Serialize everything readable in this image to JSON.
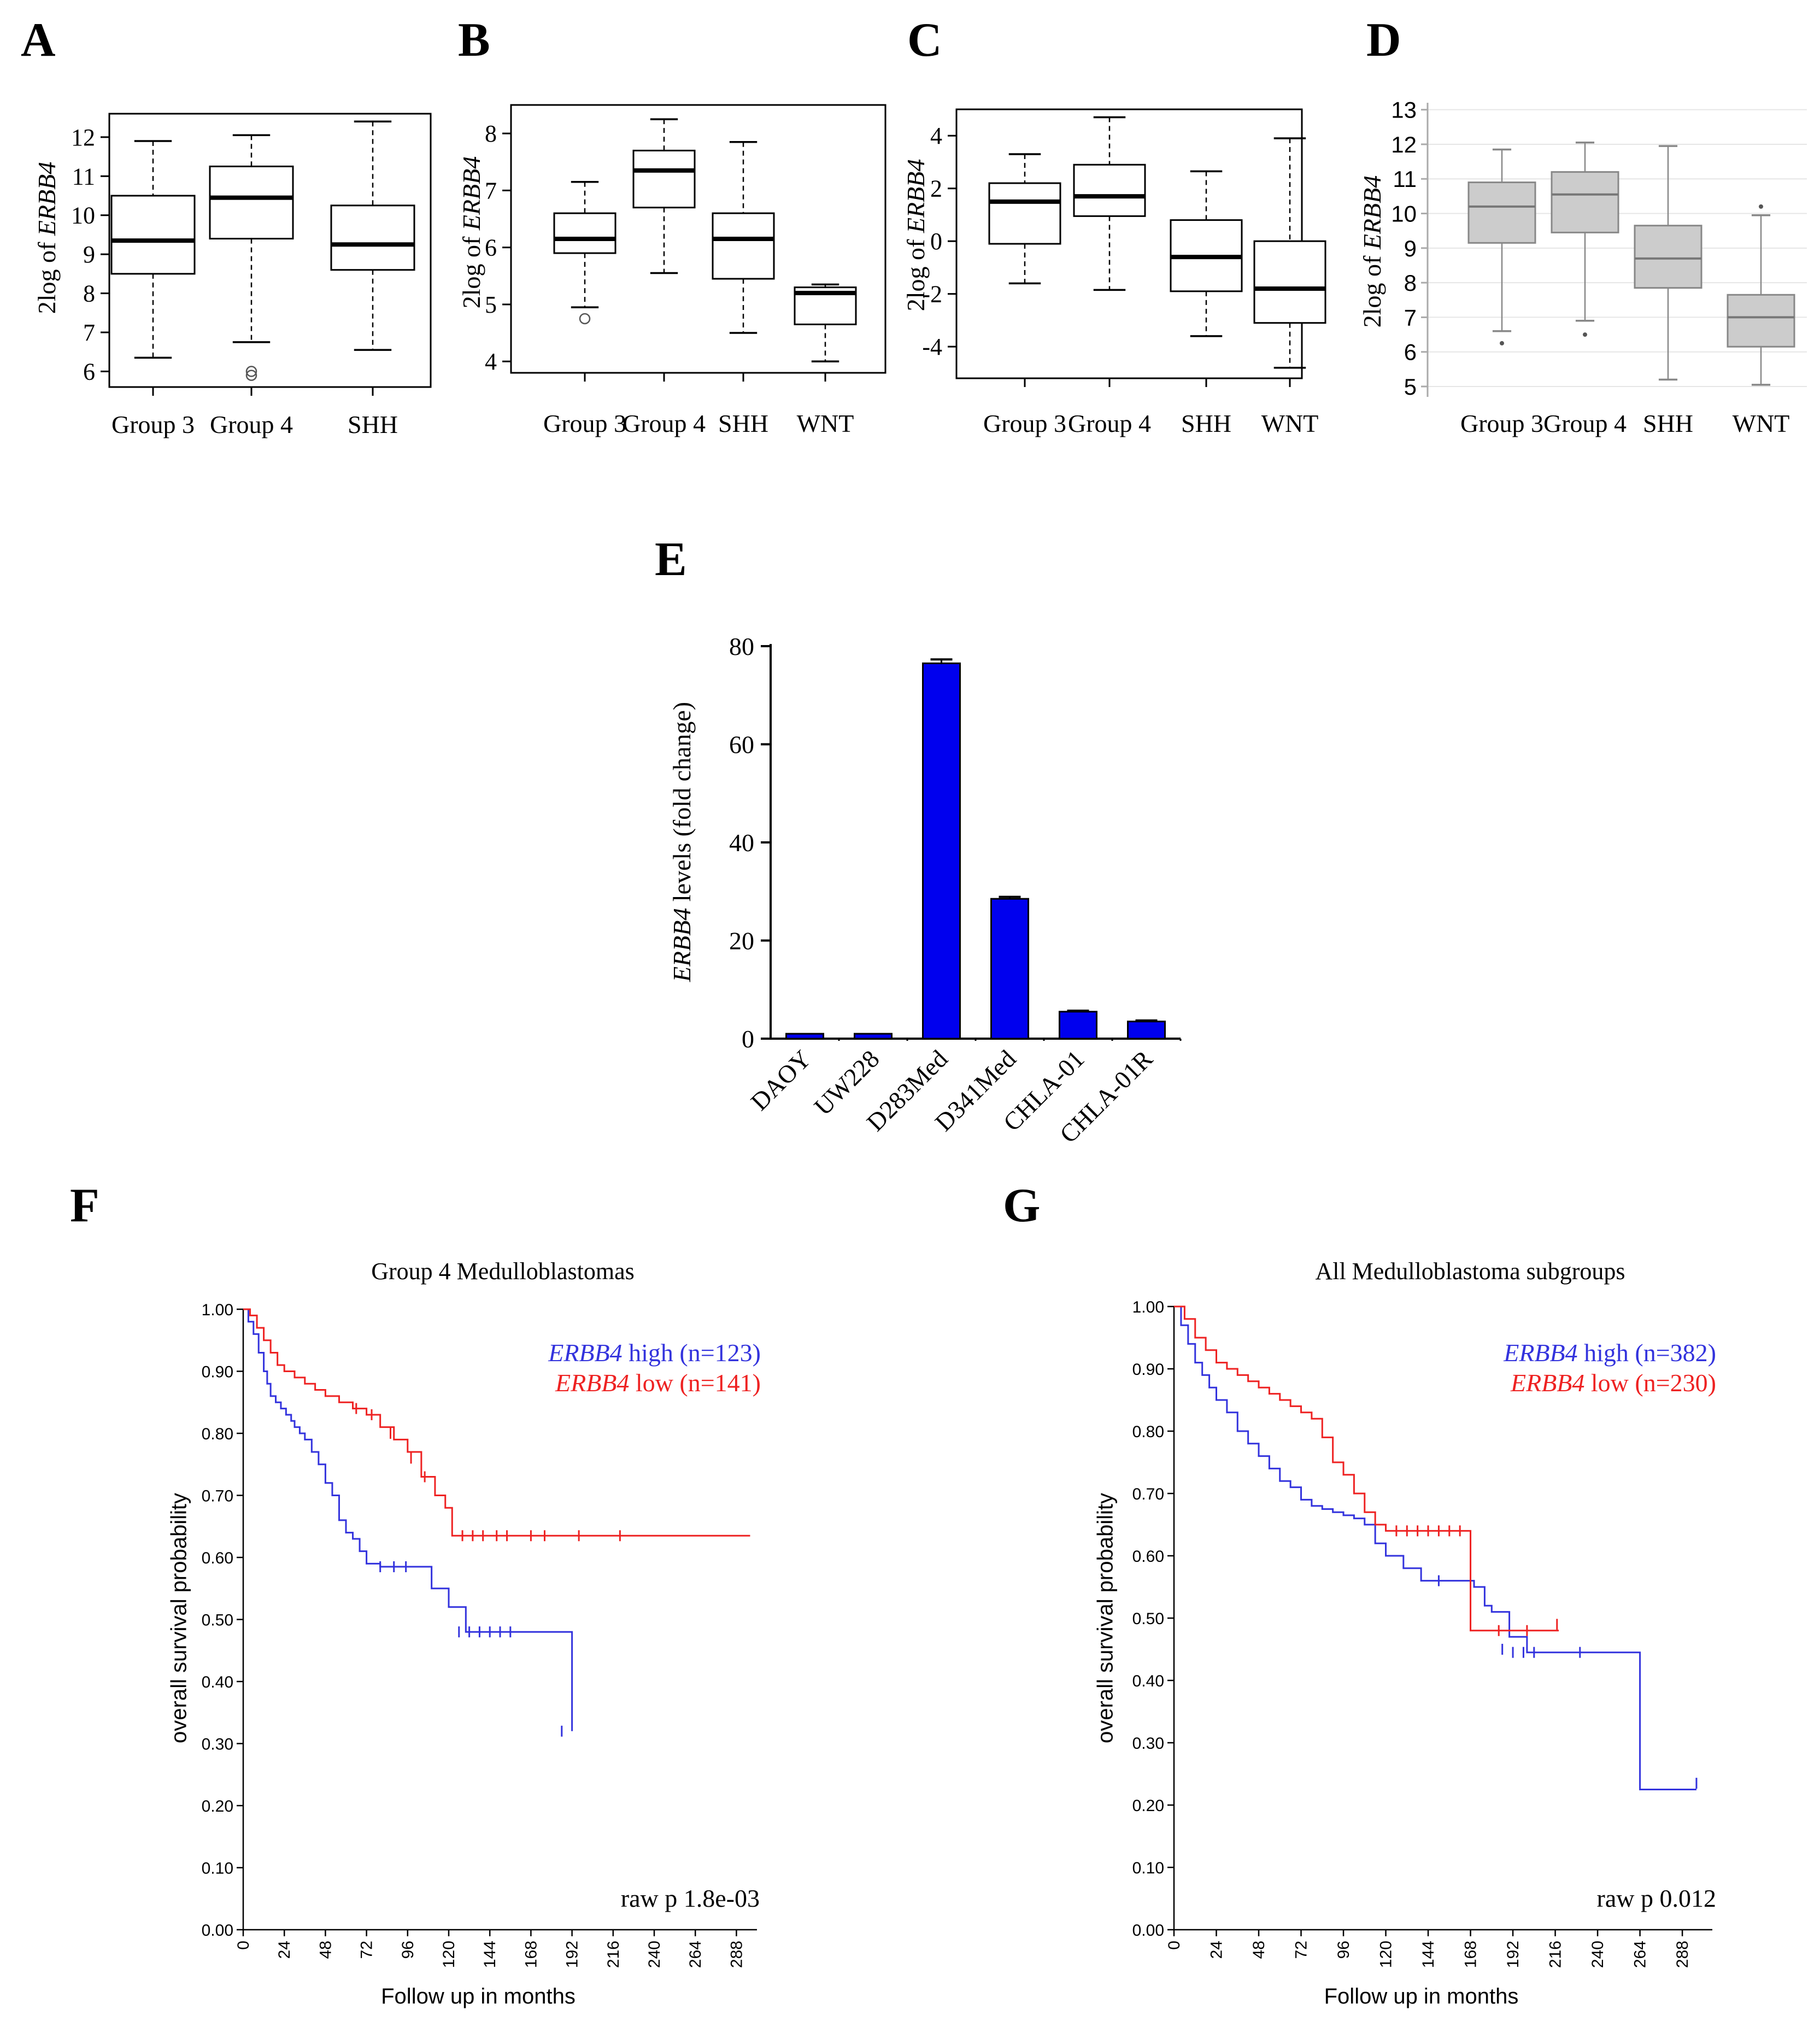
{
  "chart_data": [
    {
      "id": "A",
      "panel_label": "A",
      "type": "boxplot",
      "style": "outline",
      "ylabel_prefix": "2log of ",
      "ylabel_gene": "ERBB4",
      "yticks": [
        6,
        7,
        8,
        9,
        10,
        11,
        12
      ],
      "ylim": [
        5.6,
        12.6
      ],
      "categories": [
        "Group 3",
        "Group 4",
        "SHH"
      ],
      "boxes": [
        {
          "name": "Group 3",
          "min": 6.35,
          "q1": 8.5,
          "median": 9.35,
          "q3": 10.5,
          "max": 11.9,
          "outliers": []
        },
        {
          "name": "Group 4",
          "min": 6.75,
          "q1": 9.4,
          "median": 10.45,
          "q3": 11.25,
          "max": 12.05,
          "outliers": [
            6.0,
            5.9
          ]
        },
        {
          "name": "SHH",
          "min": 6.55,
          "q1": 8.6,
          "median": 9.25,
          "q3": 10.25,
          "max": 12.4,
          "outliers": []
        }
      ]
    },
    {
      "id": "B",
      "panel_label": "B",
      "type": "boxplot",
      "style": "outline",
      "ylabel_prefix": "2log of ",
      "ylabel_gene": "ERBB4",
      "yticks": [
        4,
        5,
        6,
        7,
        8
      ],
      "ylim": [
        3.8,
        8.5
      ],
      "categories": [
        "Group 3",
        "Group 4",
        "SHH",
        "WNT"
      ],
      "boxes": [
        {
          "name": "Group 3",
          "min": 4.95,
          "q1": 5.9,
          "median": 6.15,
          "q3": 6.6,
          "max": 7.15,
          "outliers": [
            4.75
          ]
        },
        {
          "name": "Group 4",
          "min": 5.55,
          "q1": 6.7,
          "median": 7.35,
          "q3": 7.7,
          "max": 8.25,
          "outliers": []
        },
        {
          "name": "SHH",
          "min": 4.5,
          "q1": 5.45,
          "median": 6.15,
          "q3": 6.6,
          "max": 7.85,
          "outliers": []
        },
        {
          "name": "WNT",
          "min": 4.0,
          "q1": 4.65,
          "median": 5.2,
          "q3": 5.3,
          "max": 5.35,
          "outliers": []
        }
      ]
    },
    {
      "id": "C",
      "panel_label": "C",
      "type": "boxplot",
      "style": "outline",
      "ylabel_prefix": "2log of ",
      "ylabel_gene": "ERBB4",
      "yticks": [
        -4,
        -2,
        0,
        2,
        4
      ],
      "ylim": [
        -5.2,
        5.0
      ],
      "categories": [
        "Group 3",
        "Group 4",
        "SHH",
        "WNT"
      ],
      "boxes": [
        {
          "name": "Group 3",
          "min": -1.6,
          "q1": -0.1,
          "median": 1.5,
          "q3": 2.2,
          "max": 3.3,
          "outliers": []
        },
        {
          "name": "Group 4",
          "min": -1.85,
          "q1": 0.95,
          "median": 1.7,
          "q3": 2.9,
          "max": 4.7,
          "outliers": []
        },
        {
          "name": "SHH",
          "min": -3.6,
          "q1": -1.9,
          "median": -0.6,
          "q3": 0.8,
          "max": 2.65,
          "outliers": []
        },
        {
          "name": "WNT",
          "min": -4.8,
          "q1": -3.1,
          "median": -1.8,
          "q3": 0.0,
          "max": 3.9,
          "outliers": []
        }
      ]
    },
    {
      "id": "D",
      "panel_label": "D",
      "type": "boxplot",
      "style": "gray",
      "ylabel_prefix": "2log of ",
      "ylabel_gene": "ERBB4",
      "yticks": [
        5,
        6,
        7,
        8,
        9,
        10,
        11,
        12,
        13
      ],
      "ylim": [
        4.7,
        13.2
      ],
      "grid": true,
      "categories": [
        "Group 3",
        "Group 4",
        "SHH",
        "WNT"
      ],
      "boxes": [
        {
          "name": "Group 3",
          "min": 6.6,
          "q1": 9.15,
          "median": 10.2,
          "q3": 10.9,
          "max": 11.85,
          "outliers": [
            6.25
          ]
        },
        {
          "name": "Group 4",
          "min": 6.9,
          "q1": 9.45,
          "median": 10.55,
          "q3": 11.2,
          "max": 12.05,
          "outliers": [
            6.5
          ]
        },
        {
          "name": "SHH",
          "min": 5.2,
          "q1": 7.85,
          "median": 8.7,
          "q3": 9.65,
          "max": 11.95,
          "outliers": []
        },
        {
          "name": "WNT",
          "min": 5.05,
          "q1": 6.15,
          "median": 7.0,
          "q3": 7.65,
          "max": 9.95,
          "outliers": [
            10.2
          ]
        }
      ]
    },
    {
      "id": "E",
      "panel_label": "E",
      "type": "bar",
      "ylabel_gene": "ERBB4",
      "ylabel_rest": " levels (fold change)",
      "yticks": [
        0,
        20,
        40,
        60,
        80
      ],
      "ylim": [
        0,
        80
      ],
      "categories": [
        "DAOY",
        "UW228",
        "D283Med",
        "D341Med",
        "CHLA-01",
        "CHLA-01R"
      ],
      "values": [
        1.0,
        1.0,
        76.5,
        28.5,
        5.5,
        3.5
      ],
      "errors": [
        0.1,
        0.1,
        0.8,
        0.4,
        0.2,
        0.2
      ],
      "color": "#0000ee"
    },
    {
      "id": "F",
      "panel_label": "F",
      "type": "line",
      "subtype": "kaplan-meier",
      "title": "Group 4 Medulloblastomas",
      "xlabel": "Follow up in months",
      "ylabel": "overall survival probability",
      "xticks": [
        0,
        24,
        48,
        72,
        96,
        120,
        144,
        168,
        192,
        216,
        240,
        264,
        288
      ],
      "yticks": [
        "0.00",
        "0.10",
        "0.20",
        "0.30",
        "0.40",
        "0.50",
        "0.60",
        "0.70",
        "0.80",
        "0.90",
        "1.00"
      ],
      "xlim": [
        0,
        300
      ],
      "ylim": [
        0,
        1.0
      ],
      "annotation": "raw p 1.8e-03",
      "series": [
        {
          "name_gene": "ERBB4",
          "name_rest": " high (n=123)",
          "color": "#3333dd",
          "x": [
            0,
            3,
            6,
            9,
            12,
            14,
            16,
            19,
            22,
            25,
            28,
            30,
            33,
            36,
            40,
            44,
            48,
            52,
            56,
            60,
            64,
            68,
            72,
            80,
            90,
            105,
            110,
            120,
            130,
            150,
            168,
            192
          ],
          "y": [
            1.0,
            0.98,
            0.96,
            0.93,
            0.9,
            0.88,
            0.86,
            0.85,
            0.84,
            0.83,
            0.82,
            0.81,
            0.8,
            0.79,
            0.77,
            0.75,
            0.72,
            0.7,
            0.66,
            0.64,
            0.63,
            0.61,
            0.59,
            0.585,
            0.585,
            0.585,
            0.55,
            0.52,
            0.48,
            0.48,
            0.48,
            0.32
          ],
          "censor_x": [
            80,
            88,
            95,
            126,
            132,
            138,
            144,
            150,
            156,
            186
          ],
          "censor_y": [
            0.585,
            0.585,
            0.585,
            0.48,
            0.48,
            0.48,
            0.48,
            0.48,
            0.48,
            0.32
          ]
        },
        {
          "name_gene": "ERBB4",
          "name_rest": " low (n=141)",
          "color": "#ee2222",
          "x": [
            0,
            4,
            8,
            12,
            16,
            20,
            24,
            30,
            36,
            42,
            48,
            56,
            64,
            72,
            80,
            88,
            96,
            104,
            112,
            118,
            122,
            296
          ],
          "y": [
            1.0,
            0.99,
            0.97,
            0.95,
            0.93,
            0.91,
            0.9,
            0.89,
            0.88,
            0.87,
            0.86,
            0.85,
            0.84,
            0.83,
            0.81,
            0.79,
            0.77,
            0.73,
            0.7,
            0.68,
            0.635,
            0.635
          ],
          "censor_x": [
            66,
            75,
            86,
            98,
            106,
            128,
            134,
            140,
            148,
            154,
            168,
            176,
            196,
            220
          ],
          "censor_y": [
            0.84,
            0.83,
            0.8,
            0.76,
            0.73,
            0.635,
            0.635,
            0.635,
            0.635,
            0.635,
            0.635,
            0.635,
            0.635,
            0.635
          ]
        }
      ]
    },
    {
      "id": "G",
      "panel_label": "G",
      "type": "line",
      "subtype": "kaplan-meier",
      "title": "All Medulloblastoma subgroups",
      "xlabel": "Follow up in months",
      "ylabel": "overall survival probability",
      "xticks": [
        0,
        24,
        48,
        72,
        96,
        120,
        144,
        168,
        192,
        216,
        240,
        264,
        288
      ],
      "yticks": [
        "0.00",
        "0.10",
        "0.20",
        "0.30",
        "0.40",
        "0.50",
        "0.60",
        "0.70",
        "0.80",
        "0.90",
        "1.00"
      ],
      "xlim": [
        0,
        305
      ],
      "ylim": [
        0,
        1.0
      ],
      "annotation": "raw p 0.012",
      "series": [
        {
          "name_gene": "ERBB4",
          "name_rest": " high (n=382)",
          "color": "#3333dd",
          "x": [
            0,
            4,
            8,
            12,
            16,
            20,
            24,
            30,
            36,
            42,
            48,
            54,
            60,
            66,
            72,
            78,
            84,
            90,
            96,
            102,
            108,
            114,
            120,
            130,
            140,
            160,
            170,
            176,
            180,
            190,
            200,
            230,
            264,
            296
          ],
          "y": [
            1.0,
            0.97,
            0.94,
            0.91,
            0.89,
            0.87,
            0.85,
            0.83,
            0.8,
            0.78,
            0.76,
            0.74,
            0.72,
            0.71,
            0.69,
            0.68,
            0.675,
            0.67,
            0.665,
            0.66,
            0.65,
            0.62,
            0.6,
            0.58,
            0.56,
            0.56,
            0.55,
            0.52,
            0.51,
            0.47,
            0.445,
            0.445,
            0.225,
            0.225
          ],
          "censor_x": [
            150,
            186,
            192,
            198,
            204,
            230,
            296
          ],
          "censor_y": [
            0.56,
            0.45,
            0.445,
            0.445,
            0.445,
            0.445,
            0.235
          ]
        },
        {
          "name_gene": "ERBB4",
          "name_rest": " low (n=230)",
          "color": "#ee2222",
          "x": [
            0,
            6,
            12,
            18,
            24,
            30,
            36,
            42,
            48,
            54,
            60,
            66,
            72,
            78,
            84,
            90,
            96,
            102,
            108,
            114,
            120,
            130,
            140,
            150,
            164,
            168,
            180,
            196,
            218
          ],
          "y": [
            1.0,
            0.98,
            0.95,
            0.93,
            0.91,
            0.9,
            0.89,
            0.88,
            0.87,
            0.86,
            0.85,
            0.84,
            0.83,
            0.82,
            0.79,
            0.75,
            0.73,
            0.7,
            0.67,
            0.65,
            0.64,
            0.64,
            0.64,
            0.64,
            0.64,
            0.48,
            0.48,
            0.48,
            0.48
          ],
          "censor_x": [
            126,
            132,
            138,
            144,
            150,
            156,
            162,
            184,
            200,
            217
          ],
          "censor_y": [
            0.64,
            0.64,
            0.64,
            0.64,
            0.64,
            0.64,
            0.64,
            0.48,
            0.48,
            0.49
          ]
        }
      ]
    }
  ]
}
